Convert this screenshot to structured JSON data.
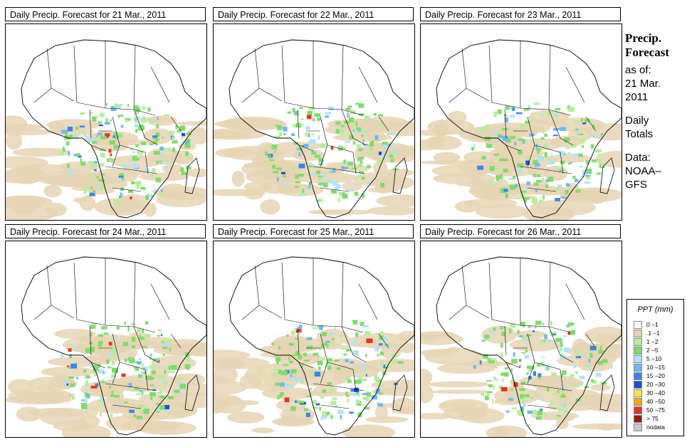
{
  "panels": [
    {
      "title": "Daily Precip. Forecast for  21 Mar., 2011",
      "seed": 11
    },
    {
      "title": "Daily Precip. Forecast for  22 Mar., 2011",
      "seed": 23
    },
    {
      "title": "Daily Precip. Forecast for  23 Mar., 2011",
      "seed": 37
    },
    {
      "title": "Daily Precip. Forecast for  24 Mar., 2011",
      "seed": 41
    },
    {
      "title": "Daily Precip. Forecast for  25 Mar., 2011",
      "seed": 53
    },
    {
      "title": "Daily Precip. Forecast for  26 Mar., 2011",
      "seed": 67
    }
  ],
  "side": {
    "title_line1": "Precip.",
    "title_line2": "Forecast",
    "asof_line1": "as of:",
    "asof_line2": "21 Mar.",
    "asof_line3": "2011",
    "totals_line1": "Daily",
    "totals_line2": "Totals",
    "data_line1": "Data:",
    "data_line2": "NOAA–",
    "data_line3": "GFS"
  },
  "legend": {
    "title": "PPT (mm)",
    "classes": [
      {
        "label": "0 –1",
        "color": "#ffffff"
      },
      {
        "label": ".1 –1",
        "color": "#e6d3b3"
      },
      {
        "label": "1 –2",
        "color": "#b5ef9a"
      },
      {
        "label": "2 –5",
        "color": "#7fdc6a"
      },
      {
        "label": "5 –10",
        "color": "#aee4f7"
      },
      {
        "label": "10 –15",
        "color": "#6fb9f0"
      },
      {
        "label": "15 –20",
        "color": "#3a86e6"
      },
      {
        "label": "20 –30",
        "color": "#1a4fd6"
      },
      {
        "label": "30 –40",
        "color": "#ffe34d"
      },
      {
        "label": "40 –50",
        "color": "#ffa500"
      },
      {
        "label": "50 –75",
        "color": "#e8321e"
      },
      {
        "label": "> 75",
        "color": "#9b1a12"
      },
      {
        "label": "nodata",
        "color": "#c8c8c8"
      }
    ]
  }
}
